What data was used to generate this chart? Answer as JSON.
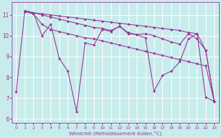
{
  "xlabel": "Windchill (Refroidissement éolien,°C)",
  "bg_color": "#c8ecec",
  "line_color": "#993399",
  "grid_color": "#ffffff",
  "xlim": [
    -0.5,
    23.5
  ],
  "ylim": [
    5.8,
    11.6
  ],
  "yticks": [
    6,
    7,
    8,
    9,
    10,
    11
  ],
  "xticks": [
    0,
    1,
    2,
    3,
    4,
    5,
    6,
    7,
    8,
    9,
    10,
    11,
    12,
    13,
    14,
    15,
    16,
    17,
    18,
    19,
    20,
    21,
    22,
    23
  ],
  "series": [
    [
      [
        0,
        7.3
      ],
      [
        1,
        11.2
      ],
      [
        2,
        11.1
      ],
      [
        3,
        10.0
      ],
      [
        4,
        10.55
      ],
      [
        5,
        8.9
      ],
      [
        6,
        8.3
      ],
      [
        7,
        6.35
      ],
      [
        8,
        9.65
      ],
      [
        9,
        9.55
      ],
      [
        10,
        10.3
      ],
      [
        11,
        10.2
      ],
      [
        12,
        10.45
      ],
      [
        13,
        10.15
      ],
      [
        14,
        10.05
      ],
      [
        15,
        9.9
      ],
      [
        16,
        7.35
      ],
      [
        17,
        8.1
      ],
      [
        18,
        8.3
      ],
      [
        19,
        8.75
      ],
      [
        20,
        9.85
      ],
      [
        21,
        10.1
      ],
      [
        22,
        7.05
      ],
      [
        23,
        6.85
      ]
    ],
    [
      [
        1,
        11.15
      ],
      [
        2,
        11.05
      ],
      [
        3,
        10.55
      ],
      [
        4,
        10.3
      ],
      [
        5,
        10.2
      ],
      [
        6,
        10.1
      ],
      [
        7,
        10.0
      ],
      [
        8,
        9.9
      ],
      [
        9,
        9.85
      ],
      [
        10,
        9.75
      ],
      [
        11,
        9.65
      ],
      [
        12,
        9.55
      ],
      [
        13,
        9.45
      ],
      [
        14,
        9.35
      ],
      [
        15,
        9.25
      ],
      [
        16,
        9.15
      ],
      [
        17,
        9.05
      ],
      [
        18,
        8.95
      ],
      [
        19,
        8.85
      ],
      [
        20,
        8.75
      ],
      [
        21,
        8.65
      ],
      [
        22,
        8.55
      ],
      [
        23,
        6.85
      ]
    ],
    [
      [
        1,
        11.2
      ],
      [
        2,
        11.1
      ],
      [
        3,
        11.0
      ],
      [
        4,
        10.9
      ],
      [
        5,
        10.8
      ],
      [
        6,
        10.7
      ],
      [
        7,
        10.6
      ],
      [
        8,
        10.5
      ],
      [
        9,
        10.4
      ],
      [
        10,
        10.35
      ],
      [
        11,
        10.25
      ],
      [
        12,
        10.45
      ],
      [
        13,
        10.1
      ],
      [
        14,
        10.05
      ],
      [
        15,
        10.1
      ],
      [
        16,
        10.0
      ],
      [
        17,
        9.85
      ],
      [
        18,
        9.7
      ],
      [
        19,
        9.6
      ],
      [
        20,
        10.1
      ],
      [
        21,
        9.85
      ],
      [
        22,
        9.3
      ],
      [
        23,
        6.85
      ]
    ],
    [
      [
        1,
        11.2
      ],
      [
        2,
        11.1
      ],
      [
        3,
        11.05
      ],
      [
        4,
        11.0
      ],
      [
        5,
        10.95
      ],
      [
        6,
        10.9
      ],
      [
        7,
        10.85
      ],
      [
        8,
        10.8
      ],
      [
        9,
        10.75
      ],
      [
        10,
        10.7
      ],
      [
        11,
        10.65
      ],
      [
        12,
        10.6
      ],
      [
        13,
        10.55
      ],
      [
        14,
        10.5
      ],
      [
        15,
        10.45
      ],
      [
        16,
        10.4
      ],
      [
        17,
        10.35
      ],
      [
        18,
        10.3
      ],
      [
        19,
        10.25
      ],
      [
        20,
        10.15
      ],
      [
        21,
        10.1
      ],
      [
        22,
        9.3
      ],
      [
        23,
        6.85
      ]
    ]
  ],
  "figsize": [
    3.2,
    2.0
  ],
  "dpi": 100
}
